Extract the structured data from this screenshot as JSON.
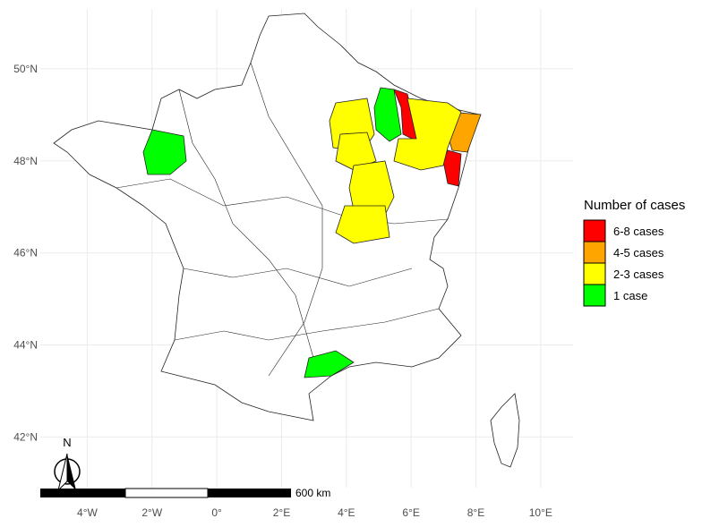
{
  "map": {
    "xlim": [
      -5.45,
      11
    ],
    "ylim": [
      40.9,
      51.3
    ],
    "xticks": [
      {
        "value": -4,
        "label": "4°W"
      },
      {
        "value": -2,
        "label": "2°W"
      },
      {
        "value": 0,
        "label": "0°"
      },
      {
        "value": 2,
        "label": "2°E"
      },
      {
        "value": 4,
        "label": "4°E"
      },
      {
        "value": 6,
        "label": "6°E"
      },
      {
        "value": 8,
        "label": "8°E"
      },
      {
        "value": 10,
        "label": "10°E"
      }
    ],
    "yticks": [
      {
        "value": 42,
        "label": "42°N"
      },
      {
        "value": 44,
        "label": "44°N"
      },
      {
        "value": 46,
        "label": "46°N"
      },
      {
        "value": 48,
        "label": "48°N"
      },
      {
        "value": 50,
        "label": "50°N"
      }
    ],
    "legend": {
      "title": "Number of cases",
      "items": [
        {
          "label": "6-8 cases",
          "color": "#ff0000"
        },
        {
          "label": "4-5 cases",
          "color": "#ffa500"
        },
        {
          "label": "2-3 cases",
          "color": "#ffff00"
        },
        {
          "label": "1 case",
          "color": "#00ff00"
        }
      ]
    },
    "scale_bar": {
      "label": "600 km"
    },
    "north_label": "N"
  }
}
